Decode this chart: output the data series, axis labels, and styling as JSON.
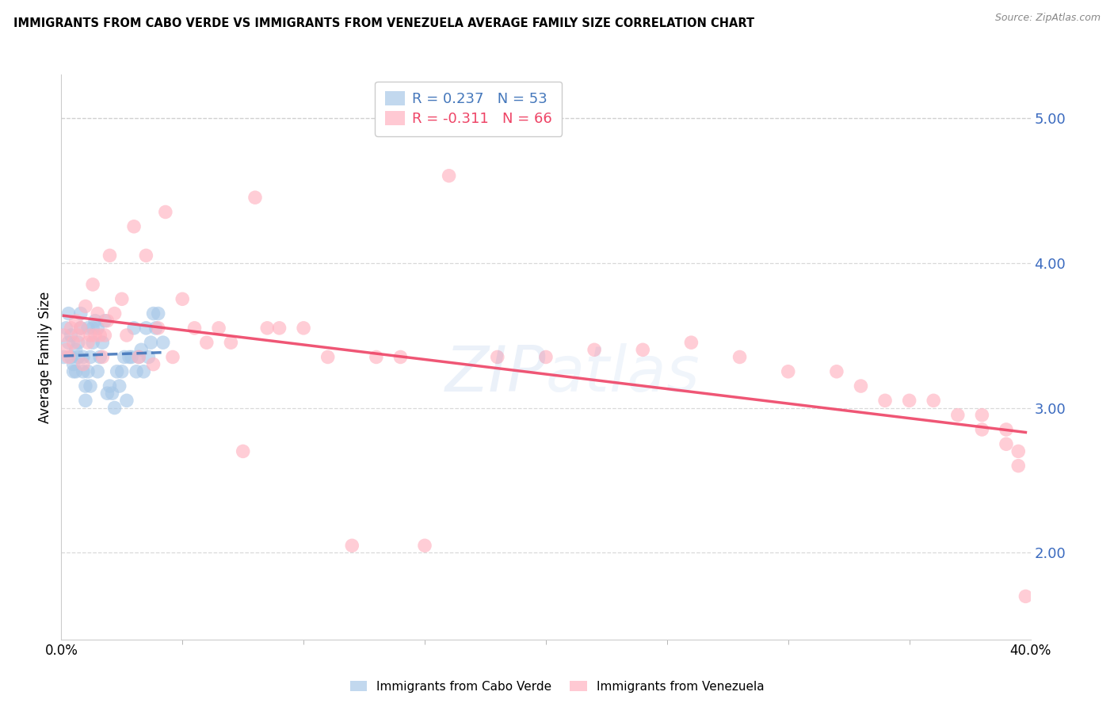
{
  "title": "IMMIGRANTS FROM CABO VERDE VS IMMIGRANTS FROM VENEZUELA AVERAGE FAMILY SIZE CORRELATION CHART",
  "source": "Source: ZipAtlas.com",
  "ylabel": "Average Family Size",
  "right_yticks": [
    5.0,
    4.0,
    3.0,
    2.0
  ],
  "cabo_verde_color": "#a8c8e8",
  "venezuela_color": "#ffb3c1",
  "trend_cabo_verde_color": "#4477bb",
  "trend_venezuela_color": "#ee4466",
  "cabo_verde_x": [
    0.001,
    0.002,
    0.003,
    0.003,
    0.004,
    0.004,
    0.005,
    0.005,
    0.006,
    0.006,
    0.007,
    0.007,
    0.008,
    0.008,
    0.009,
    0.009,
    0.01,
    0.01,
    0.011,
    0.011,
    0.012,
    0.012,
    0.013,
    0.013,
    0.014,
    0.015,
    0.015,
    0.016,
    0.017,
    0.018,
    0.019,
    0.02,
    0.021,
    0.022,
    0.023,
    0.024,
    0.025,
    0.026,
    0.027,
    0.028,
    0.029,
    0.03,
    0.031,
    0.032,
    0.033,
    0.034,
    0.035,
    0.036,
    0.037,
    0.038,
    0.039,
    0.04,
    0.042
  ],
  "cabo_verde_y": [
    3.35,
    3.55,
    3.45,
    3.65,
    3.5,
    3.35,
    3.3,
    3.25,
    3.4,
    3.25,
    3.35,
    3.45,
    3.55,
    3.65,
    3.35,
    3.25,
    3.15,
    3.05,
    3.25,
    3.55,
    3.15,
    3.35,
    3.45,
    3.55,
    3.6,
    3.25,
    3.55,
    3.35,
    3.45,
    3.6,
    3.1,
    3.15,
    3.1,
    3.0,
    3.25,
    3.15,
    3.25,
    3.35,
    3.05,
    3.35,
    3.35,
    3.55,
    3.25,
    3.35,
    3.4,
    3.25,
    3.55,
    3.35,
    3.45,
    3.65,
    3.55,
    3.65,
    3.45
  ],
  "venezuela_x": [
    0.001,
    0.002,
    0.003,
    0.004,
    0.005,
    0.006,
    0.007,
    0.008,
    0.009,
    0.01,
    0.011,
    0.012,
    0.013,
    0.014,
    0.015,
    0.016,
    0.017,
    0.018,
    0.019,
    0.02,
    0.022,
    0.025,
    0.027,
    0.03,
    0.032,
    0.035,
    0.038,
    0.04,
    0.043,
    0.046,
    0.05,
    0.055,
    0.06,
    0.065,
    0.07,
    0.075,
    0.08,
    0.085,
    0.09,
    0.1,
    0.11,
    0.12,
    0.13,
    0.14,
    0.15,
    0.16,
    0.18,
    0.2,
    0.22,
    0.24,
    0.26,
    0.28,
    0.3,
    0.32,
    0.33,
    0.34,
    0.35,
    0.36,
    0.37,
    0.38,
    0.38,
    0.39,
    0.39,
    0.395,
    0.395,
    0.398
  ],
  "venezuela_y": [
    3.5,
    3.4,
    3.35,
    3.55,
    3.45,
    3.6,
    3.5,
    3.55,
    3.3,
    3.7,
    3.45,
    3.5,
    3.85,
    3.5,
    3.65,
    3.5,
    3.35,
    3.5,
    3.6,
    4.05,
    3.65,
    3.75,
    3.5,
    4.25,
    3.35,
    4.05,
    3.3,
    3.55,
    4.35,
    3.35,
    3.75,
    3.55,
    3.45,
    3.55,
    3.45,
    2.7,
    4.45,
    3.55,
    3.55,
    3.55,
    3.35,
    2.05,
    3.35,
    3.35,
    2.05,
    4.6,
    3.35,
    3.35,
    3.4,
    3.4,
    3.45,
    3.35,
    3.25,
    3.25,
    3.15,
    3.05,
    3.05,
    3.05,
    2.95,
    2.95,
    2.85,
    2.85,
    2.75,
    2.7,
    2.6,
    1.7
  ],
  "xlim": [
    0.0,
    0.4
  ],
  "ylim": [
    1.4,
    5.3
  ],
  "xtick_minor": [
    0.05,
    0.1,
    0.15,
    0.2,
    0.25,
    0.3,
    0.35
  ],
  "background_color": "#ffffff",
  "grid_color": "#d0d0d0"
}
